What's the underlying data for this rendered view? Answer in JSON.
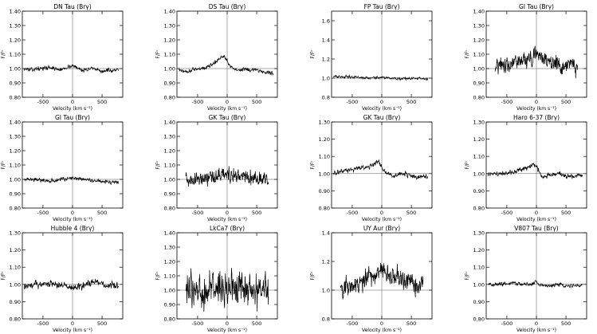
{
  "figure": {
    "xlabel": "Velocity (km s⁻¹)",
    "ylabel": "F/Fᶜ"
  },
  "chart_data": [
    {
      "type": "line",
      "title": "DN Tau (Brγ)",
      "xlim": [
        -850,
        850
      ],
      "ylim": [
        0.8,
        1.4
      ],
      "xticks": [
        -500,
        0,
        500
      ],
      "yticks": [
        0.8,
        0.9,
        1.0,
        1.1,
        1.2,
        1.3,
        1.4
      ],
      "ytick_labels": [
        "0.80",
        "0.90",
        "1.00",
        "1.10",
        "1.20",
        "1.30",
        "1.40"
      ],
      "grid": false,
      "series": [
        {
          "x": [
            -820,
            -700,
            -600,
            -500,
            -400,
            -300,
            -200,
            -100,
            0,
            100,
            200,
            300,
            400,
            500,
            600,
            700,
            780
          ],
          "y": [
            1.0,
            0.99,
            1.0,
            1.0,
            1.01,
            1.0,
            0.99,
            1.01,
            1.02,
            1.0,
            0.99,
            1.0,
            0.99,
            0.98,
            0.99,
            0.98,
            0.99
          ]
        }
      ],
      "noise": 0.01
    },
    {
      "type": "line",
      "title": "DS Tau (Brγ)",
      "xlim": [
        -850,
        850
      ],
      "ylim": [
        0.8,
        1.4
      ],
      "xticks": [
        -500,
        0,
        500
      ],
      "yticks": [
        0.8,
        0.9,
        1.0,
        1.1,
        1.2,
        1.3,
        1.4
      ],
      "ytick_labels": [
        "0.80",
        "0.90",
        "1.00",
        "1.10",
        "1.20",
        "1.30",
        "1.40"
      ],
      "grid": false,
      "series": [
        {
          "x": [
            -820,
            -700,
            -600,
            -500,
            -400,
            -300,
            -200,
            -150,
            -100,
            -50,
            0,
            50,
            100,
            200,
            300,
            400,
            500,
            600,
            700,
            780
          ],
          "y": [
            0.99,
            0.98,
            0.99,
            1.0,
            1.0,
            1.02,
            1.04,
            1.06,
            1.08,
            1.09,
            1.05,
            1.02,
            1.0,
            0.99,
            1.0,
            0.99,
            0.99,
            0.98,
            0.97,
            0.97
          ]
        }
      ],
      "noise": 0.01
    },
    {
      "type": "line",
      "title": "FP Tau (Brγ)",
      "xlim": [
        -850,
        850
      ],
      "ylim": [
        0.8,
        1.7
      ],
      "xticks": [
        -500,
        0,
        500
      ],
      "yticks": [
        0.8,
        1.0,
        1.2,
        1.4,
        1.6
      ],
      "ytick_labels": [
        "0.8",
        "1.0",
        "1.2",
        "1.4",
        "1.6"
      ],
      "grid": false,
      "series": [
        {
          "x": [
            -820,
            -600,
            -400,
            -200,
            0,
            200,
            400,
            600,
            780
          ],
          "y": [
            1.02,
            1.01,
            1.01,
            1.0,
            1.01,
            1.0,
            0.99,
            1.0,
            0.99
          ]
        }
      ],
      "noise": 0.01
    },
    {
      "type": "line",
      "title": "GI Tau (Brγ)",
      "xlim": [
        -850,
        850
      ],
      "ylim": [
        0.8,
        1.4
      ],
      "xticks": [
        -500,
        0,
        500
      ],
      "yticks": [
        0.8,
        0.9,
        1.0,
        1.1,
        1.2,
        1.3,
        1.4
      ],
      "ytick_labels": [
        "0.80",
        "0.90",
        "1.00",
        "1.10",
        "1.20",
        "1.30",
        "1.40"
      ],
      "grid": false,
      "series": [
        {
          "x": [
            -700,
            -600,
            -500,
            -400,
            -300,
            -200,
            -100,
            0,
            100,
            200,
            300,
            400,
            500,
            600,
            700
          ],
          "y": [
            1.0,
            1.02,
            1.03,
            1.04,
            1.05,
            1.06,
            1.08,
            1.1,
            1.09,
            1.06,
            1.04,
            1.03,
            1.02,
            1.02,
            1.01
          ]
        }
      ],
      "noise": 0.04
    },
    {
      "type": "line",
      "title": "GI Tau (Brγ)",
      "xlim": [
        -850,
        850
      ],
      "ylim": [
        0.8,
        1.4
      ],
      "xticks": [
        -500,
        0,
        500
      ],
      "yticks": [
        0.8,
        0.9,
        1.0,
        1.1,
        1.2,
        1.3,
        1.4
      ],
      "ytick_labels": [
        "0.80",
        "0.90",
        "1.00",
        "1.10",
        "1.20",
        "1.30",
        "1.40"
      ],
      "grid": false,
      "series": [
        {
          "x": [
            -820,
            -600,
            -400,
            -200,
            0,
            200,
            400,
            600,
            780
          ],
          "y": [
            1.0,
            1.0,
            0.99,
            1.0,
            1.01,
            1.0,
            0.99,
            0.98,
            0.98
          ]
        }
      ],
      "noise": 0.01
    },
    {
      "type": "line",
      "title": "GK Tau (Brγ)",
      "xlim": [
        -850,
        850
      ],
      "ylim": [
        0.8,
        1.4
      ],
      "xticks": [
        -500,
        0,
        500
      ],
      "yticks": [
        0.8,
        0.9,
        1.0,
        1.1,
        1.2,
        1.3,
        1.4
      ],
      "ytick_labels": [
        "0.80",
        "0.90",
        "1.00",
        "1.10",
        "1.20",
        "1.30",
        "1.40"
      ],
      "grid": false,
      "series": [
        {
          "x": [
            -700,
            -500,
            -300,
            -100,
            0,
            100,
            300,
            500,
            700
          ],
          "y": [
            0.99,
            1.0,
            1.01,
            1.03,
            1.04,
            1.03,
            1.02,
            1.01,
            1.0
          ]
        }
      ],
      "noise": 0.035
    },
    {
      "type": "line",
      "title": "GK Tau (Brγ)",
      "xlim": [
        -850,
        850
      ],
      "ylim": [
        0.8,
        1.3
      ],
      "xticks": [
        -500,
        0,
        500
      ],
      "yticks": [
        0.8,
        0.9,
        1.0,
        1.1,
        1.2,
        1.3
      ],
      "ytick_labels": [
        "0.80",
        "0.90",
        "1.00",
        "1.10",
        "1.20",
        "1.30"
      ],
      "grid": false,
      "series": [
        {
          "x": [
            -820,
            -600,
            -400,
            -200,
            -100,
            -50,
            0,
            100,
            200,
            400,
            600,
            780
          ],
          "y": [
            1.0,
            1.02,
            1.03,
            1.04,
            1.06,
            1.07,
            1.03,
            1.0,
            0.99,
            1.0,
            0.98,
            0.98
          ]
        }
      ],
      "noise": 0.01
    },
    {
      "type": "line",
      "title": "Haro 6-37 (Brγ)",
      "xlim": [
        -850,
        850
      ],
      "ylim": [
        0.8,
        1.3
      ],
      "xticks": [
        -500,
        0,
        500
      ],
      "yticks": [
        0.8,
        0.9,
        1.0,
        1.1,
        1.2,
        1.3
      ],
      "ytick_labels": [
        "0.80",
        "0.90",
        "1.00",
        "1.10",
        "1.20",
        "1.30"
      ],
      "grid": false,
      "series": [
        {
          "x": [
            -820,
            -600,
            -400,
            -200,
            -100,
            -50,
            0,
            50,
            100,
            200,
            400,
            600,
            780
          ],
          "y": [
            1.0,
            1.0,
            1.01,
            1.03,
            1.04,
            1.06,
            1.05,
            1.0,
            0.98,
            0.99,
            1.0,
            0.98,
            0.99
          ]
        }
      ],
      "noise": 0.01
    },
    {
      "type": "line",
      "title": "Hubble 4 (Brγ)",
      "xlim": [
        -850,
        850
      ],
      "ylim": [
        0.8,
        1.3
      ],
      "xticks": [
        -500,
        0,
        500
      ],
      "yticks": [
        0.8,
        0.9,
        1.0,
        1.1,
        1.2,
        1.3
      ],
      "ytick_labels": [
        "0.80",
        "0.90",
        "1.00",
        "1.10",
        "1.20",
        "1.30"
      ],
      "grid": false,
      "series": [
        {
          "x": [
            -820,
            -600,
            -400,
            -200,
            0,
            200,
            400,
            600,
            780
          ],
          "y": [
            0.99,
            1.0,
            1.01,
            1.0,
            0.98,
            1.0,
            1.01,
            0.99,
            1.0
          ]
        }
      ],
      "noise": 0.015
    },
    {
      "type": "line",
      "title": "LkCa7 (Brγ)",
      "xlim": [
        -850,
        850
      ],
      "ylim": [
        0.8,
        1.4
      ],
      "xticks": [
        -500,
        0,
        500
      ],
      "yticks": [
        0.8,
        0.9,
        1.0,
        1.1,
        1.2,
        1.3,
        1.4
      ],
      "ytick_labels": [
        "0.80",
        "0.90",
        "1.00",
        "1.10",
        "1.20",
        "1.30",
        "1.40"
      ],
      "grid": false,
      "series": [
        {
          "x": [
            -700,
            -400,
            -100,
            0,
            100,
            400,
            700
          ],
          "y": [
            1.0,
            1.0,
            1.02,
            1.02,
            1.02,
            1.01,
            1.0
          ]
        }
      ],
      "noise": 0.08
    },
    {
      "type": "line",
      "title": "UY Aur (Brγ)",
      "xlim": [
        -850,
        850
      ],
      "ylim": [
        0.8,
        1.4
      ],
      "xticks": [
        -500,
        0,
        500
      ],
      "yticks": [
        0.8,
        1.0,
        1.2,
        1.4
      ],
      "ytick_labels": [
        "0.8",
        "1.0",
        "1.2",
        "1.4"
      ],
      "grid": false,
      "series": [
        {
          "x": [
            -700,
            -500,
            -300,
            -200,
            -100,
            0,
            100,
            200,
            400,
            600,
            700
          ],
          "y": [
            1.0,
            1.03,
            1.06,
            1.1,
            1.12,
            1.14,
            1.12,
            1.1,
            1.06,
            1.03,
            1.02
          ]
        }
      ],
      "noise": 0.05
    },
    {
      "type": "line",
      "title": "V807 Tau (Brγ)",
      "xlim": [
        -850,
        850
      ],
      "ylim": [
        0.8,
        1.3
      ],
      "xticks": [
        -500,
        0,
        500
      ],
      "yticks": [
        0.8,
        0.9,
        1.0,
        1.1,
        1.2,
        1.3
      ],
      "ytick_labels": [
        "0.80",
        "0.90",
        "1.00",
        "1.10",
        "1.20",
        "1.30"
      ],
      "grid": false,
      "series": [
        {
          "x": [
            -820,
            -600,
            -400,
            -200,
            -50,
            0,
            50,
            200,
            400,
            600,
            780
          ],
          "y": [
            1.0,
            1.0,
            1.01,
            1.0,
            1.0,
            1.02,
            1.0,
            0.99,
            1.0,
            0.99,
            1.0
          ]
        }
      ],
      "noise": 0.008
    }
  ]
}
